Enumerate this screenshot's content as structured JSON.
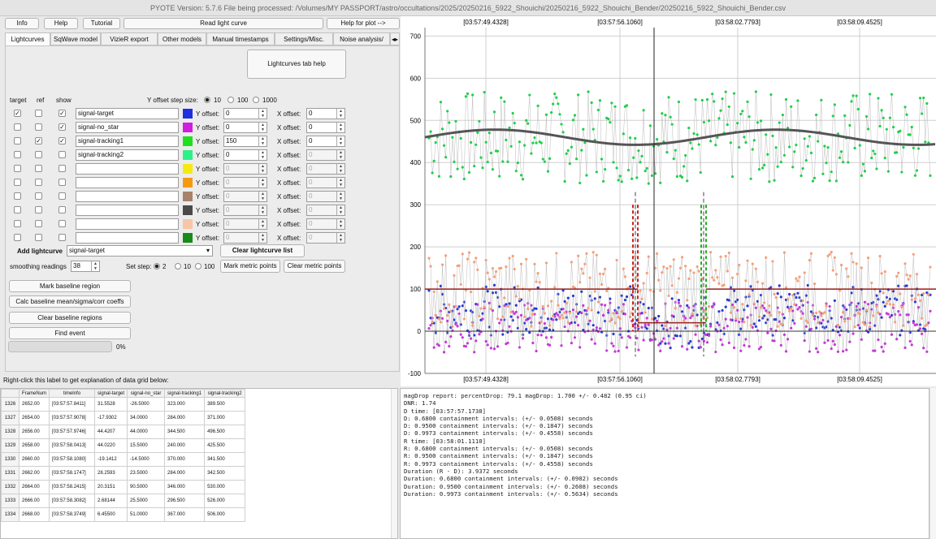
{
  "window_title": "PYOTE Version: 5.7.6  File being processed: /Volumes/MY PASSPORT/astro/occultations/2025/20250216_5922_Shouichi/20250216_5922_Shouichi_Bender/20250216_5922_Shouichi_Bender.csv",
  "toolbar": {
    "info": "Info",
    "help": "Help",
    "tutorial": "Tutorial",
    "read_lc": "Read light curve",
    "help_plot": "Help for plot -->"
  },
  "tabs": [
    "Lightcurves",
    "SqWave model",
    "VizieR export",
    "Other models",
    "Manual timestamps",
    "Settings/Misc.",
    "Noise analysis/"
  ],
  "lc_tab_help": "Lightcurves tab help",
  "headers": {
    "target": "target",
    "ref": "ref",
    "show": "show"
  },
  "yoffset_step": {
    "label": "Y offset step size:",
    "options": [
      "10",
      "100",
      "1000"
    ],
    "selected": "10"
  },
  "y_offset_label": "Y offset:",
  "x_offset_label": "X offset:",
  "curves": [
    {
      "name": "signal-target",
      "target": true,
      "ref": false,
      "show": true,
      "color": "#1f2ee0",
      "yoff": "0",
      "xoff": "0",
      "enabled": true
    },
    {
      "name": "signal-no_star",
      "target": false,
      "ref": false,
      "show": true,
      "color": "#d01ee0",
      "yoff": "0",
      "xoff": "0",
      "enabled": true
    },
    {
      "name": "signal-tracking1",
      "target": false,
      "ref": true,
      "show": true,
      "color": "#1ee01e",
      "yoff": "150",
      "xoff": "0",
      "enabled": true
    },
    {
      "name": "signal-tracking2",
      "target": false,
      "ref": false,
      "show": false,
      "color": "#2ef08a",
      "yoff": "0",
      "xoff": "0",
      "enabled": true
    },
    {
      "name": "",
      "target": false,
      "ref": false,
      "show": false,
      "color": "#f5ea10",
      "yoff": "0",
      "xoff": "0",
      "enabled": false
    },
    {
      "name": "",
      "target": false,
      "ref": false,
      "show": false,
      "color": "#f59a10",
      "yoff": "0",
      "xoff": "0",
      "enabled": false
    },
    {
      "name": "",
      "target": false,
      "ref": false,
      "show": false,
      "color": "#a8826a",
      "yoff": "0",
      "xoff": "0",
      "enabled": false
    },
    {
      "name": "",
      "target": false,
      "ref": false,
      "show": false,
      "color": "#4a4a4a",
      "yoff": "0",
      "xoff": "0",
      "enabled": false
    },
    {
      "name": "",
      "target": false,
      "ref": false,
      "show": false,
      "color": "#f7c6a6",
      "yoff": "0",
      "xoff": "0",
      "enabled": false
    },
    {
      "name": "",
      "target": false,
      "ref": false,
      "show": false,
      "color": "#178a1a",
      "yoff": "0",
      "xoff": "0",
      "enabled": false
    }
  ],
  "add_lightcurve": {
    "label": "Add lightcurve",
    "selected": "signal-target"
  },
  "clear_lc_list": "Clear lightcurve list",
  "smoothing": {
    "label": "smoothing readings",
    "value": "38"
  },
  "set_step": {
    "label": "Set step:",
    "options": [
      "2",
      "10",
      "100"
    ],
    "selected": "2"
  },
  "mark_metric": "Mark metric points",
  "clear_metric": "Clear metric points",
  "buttons": {
    "mark_baseline": "Mark baseline region",
    "calc_baseline": "Calc baseline mean/sigma/corr coeffs",
    "clear_baseline": "Clear baseline regions",
    "find_event": "Find event"
  },
  "progress": {
    "value": 0,
    "text": "0%"
  },
  "grid_hint": "Right-click this label to get explanation of data grid below:",
  "grid": {
    "columns": [
      "FrameNum",
      "timeInfo",
      "signal-target",
      "signal-no_star",
      "signal-tracking1",
      "signal-tracking2"
    ],
    "rows": [
      {
        "idx": "1326",
        "cells": [
          "2652.00",
          "[03:57:57.8411]",
          "31.5528",
          "-26.5000",
          "323.000",
          "389.500"
        ]
      },
      {
        "idx": "1327",
        "cells": [
          "2654.00",
          "[03:57:57.9078]",
          "-17.9302",
          "34.0000",
          "284.000",
          "371.000"
        ]
      },
      {
        "idx": "1328",
        "cells": [
          "2656.00",
          "[03:57:57.9746]",
          "44.4207",
          "44.0000",
          "344.500",
          "496.500"
        ]
      },
      {
        "idx": "1329",
        "cells": [
          "2658.00",
          "[03:57:58.0413]",
          "44.0220",
          "15.5000",
          "240.000",
          "425.500"
        ]
      },
      {
        "idx": "1330",
        "cells": [
          "2660.00",
          "[03:57:58.1080]",
          "-19.1412",
          "-14.5000",
          "370.000",
          "341.500"
        ]
      },
      {
        "idx": "1331",
        "cells": [
          "2662.00",
          "[03:57:58.1747]",
          "28.2593",
          "23.5000",
          "284.000",
          "342.500"
        ]
      },
      {
        "idx": "1332",
        "cells": [
          "2664.00",
          "[03:57:58.2415]",
          "20.3151",
          "90.5000",
          "346.000",
          "530.000"
        ]
      },
      {
        "idx": "1333",
        "cells": [
          "2666.00",
          "[03:57:58.3082]",
          "2.68144",
          "25.5000",
          "296.500",
          "526.000"
        ]
      },
      {
        "idx": "1334",
        "cells": [
          "2668.00",
          "[03:57:58.3749]",
          "6.45500",
          "51.0000",
          "367.000",
          "506.000"
        ]
      }
    ]
  },
  "report_lines": [
    "magDrop report: percentDrop: 79.1 magDrop: 1.700 +/- 0.482 (0.95 ci)",
    "",
    "DNR: 1.74",
    "",
    "D time: [03:57:57.1738]",
    "D: 0.6800 containment intervals: (+/- 0.0508) seconds",
    "D: 0.9500 containment intervals: (+/- 0.1847) seconds",
    "D: 0.9973 containment intervals: (+/- 0.4558) seconds",
    "",
    "R time: [03:58:01.1110]",
    "R: 0.6800 containment intervals: (+/- 0.0508) seconds",
    "R: 0.9500 containment intervals: (+/- 0.1847) seconds",
    "R: 0.9973 containment intervals: (+/- 0.4558) seconds",
    "",
    "Duration (R - D): 3.9372 seconds",
    "Duration: 0.6800 containment intervals: (+/- 0.0902) seconds",
    "Duration: 0.9500 containment intervals: (+/- 0.2608) seconds",
    "Duration: 0.9973 containment intervals: (+/- 0.5634) seconds"
  ],
  "chart_data": {
    "type": "scatter",
    "x_ticks": [
      "[03:57:49.4328]",
      "[03:57:56.1060]",
      "[03:58:02.7793]",
      "[03:58:09.4525]"
    ],
    "y_ticks": [
      "700",
      "600",
      "500",
      "400",
      "300",
      "200",
      "100",
      "0",
      "-100"
    ],
    "ylim": [
      -100,
      720
    ],
    "series": [
      {
        "name": "signal-tracking1",
        "color": "#1fd04a",
        "level": 460
      },
      {
        "name": "signal-target",
        "color": "#2a3ad0",
        "level": 50
      },
      {
        "name": "signal-no_star",
        "color": "#c43ad8",
        "level": 10
      },
      {
        "name": "signal-tracking2",
        "color": "#f4a07a",
        "level": 100
      }
    ],
    "D_time": "[03:57:57.1738]",
    "R_time": "[03:58:01.1110]",
    "baseline": 100,
    "event_bottom": 20
  }
}
